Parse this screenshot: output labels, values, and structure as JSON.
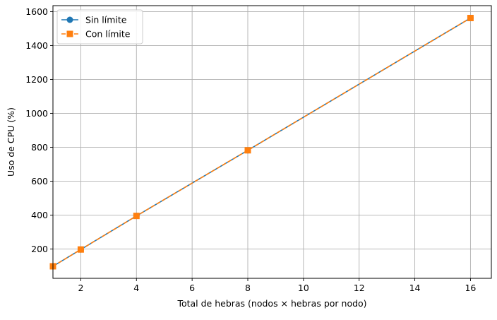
{
  "chart_data": {
    "type": "line",
    "title": "",
    "xlabel": "Total de hebras (nodos × hebras por nodo)",
    "ylabel": "Uso de CPU (%)",
    "xlim": [
      1,
      16.75
    ],
    "ylim": [
      27,
      1635
    ],
    "x_ticks": [
      2,
      4,
      6,
      8,
      10,
      12,
      14,
      16
    ],
    "y_ticks": [
      200,
      400,
      600,
      800,
      1000,
      1200,
      1400,
      1600
    ],
    "grid": true,
    "legend_position": "top-left",
    "series": [
      {
        "name": "Sin límite",
        "color": "#1f77b4",
        "marker": "circle",
        "linestyle": "solid",
        "x": [
          1,
          2,
          4,
          8,
          16
        ],
        "y": [
          98,
          197,
          395,
          782,
          1562
        ]
      },
      {
        "name": "Con límite",
        "color": "#ff7f0e",
        "marker": "square",
        "linestyle": "dashed",
        "x": [
          1,
          2,
          4,
          8,
          16
        ],
        "y": [
          98,
          197,
          395,
          782,
          1562
        ]
      }
    ]
  }
}
